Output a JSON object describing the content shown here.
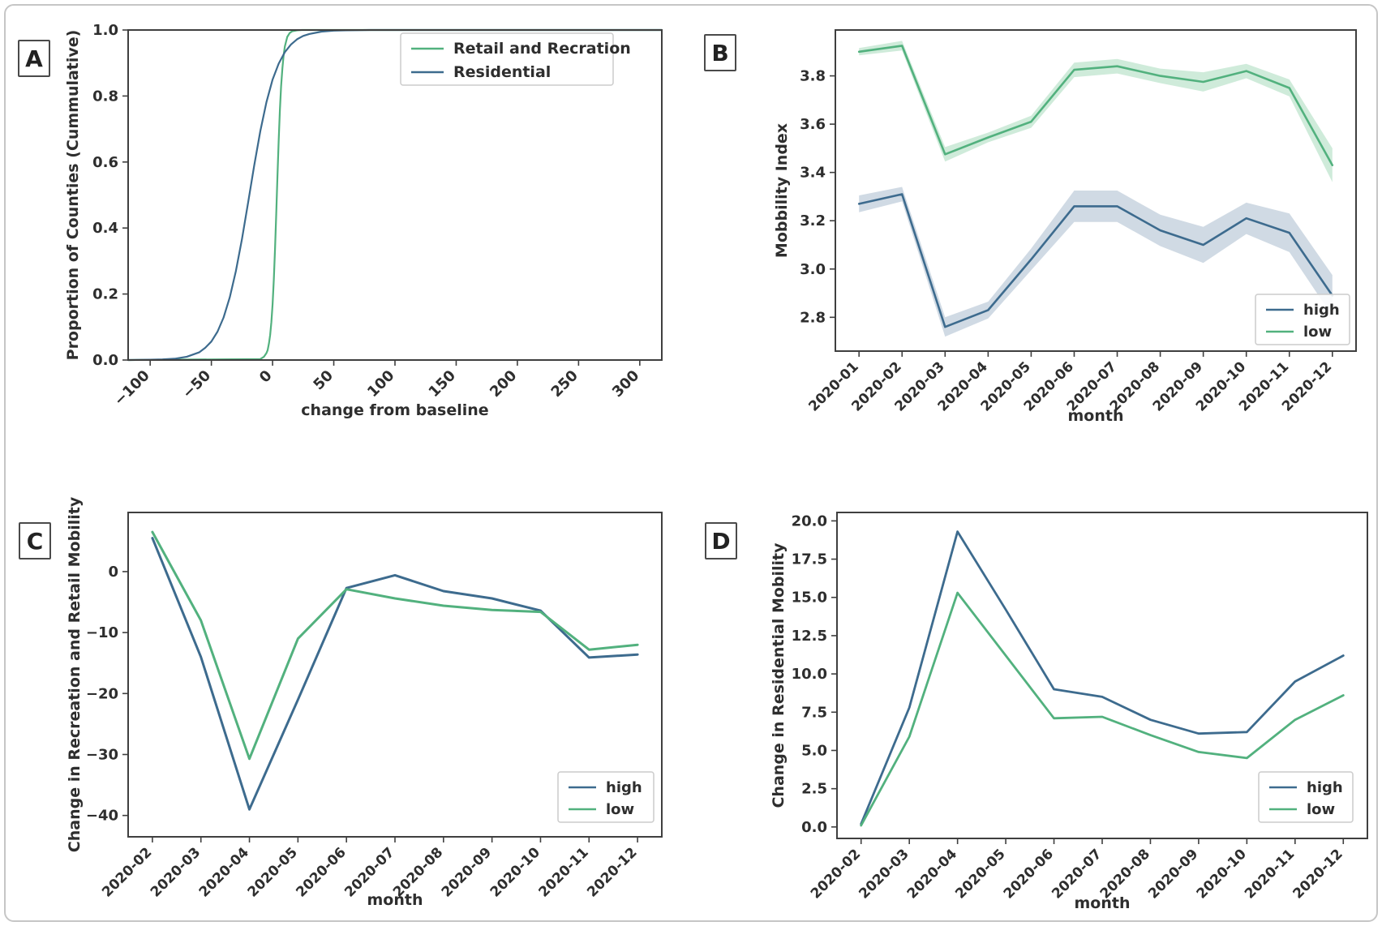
{
  "figure": {
    "panels": [
      {
        "letter": "A"
      },
      {
        "letter": "B"
      },
      {
        "letter": "C"
      },
      {
        "letter": "D"
      }
    ]
  },
  "colors": {
    "high": "#3d6b8e",
    "low": "#52b17e",
    "high_band": "rgba(110,140,170,0.32)",
    "low_band": "rgba(96,190,134,0.30)",
    "spine": "#3f3f3f",
    "text": "#2e2e2e",
    "legend_border": "#cccccc",
    "figure_border": "#c6c6c6"
  },
  "chart_data": [
    {
      "panel": "A",
      "type": "line",
      "xlabel": "change from baseline",
      "ylabel": "Proportion of Counties (Cummulative)",
      "xlim": [
        -118,
        318
      ],
      "ylim": [
        0,
        1.0
      ],
      "grid": false,
      "xticks": [
        {
          "v": -100,
          "label": "−100"
        },
        {
          "v": -50,
          "label": "−50"
        },
        {
          "v": 0,
          "label": "0"
        },
        {
          "v": 50,
          "label": "50"
        },
        {
          "v": 100,
          "label": "100"
        },
        {
          "v": 150,
          "label": "150"
        },
        {
          "v": 200,
          "label": "200"
        },
        {
          "v": 250,
          "label": "250"
        },
        {
          "v": 300,
          "label": "300"
        }
      ],
      "yticks": [
        {
          "v": 0.0,
          "label": "0.0"
        },
        {
          "v": 0.2,
          "label": "0.2"
        },
        {
          "v": 0.4,
          "label": "0.4"
        },
        {
          "v": 0.6,
          "label": "0.6"
        },
        {
          "v": 0.8,
          "label": "0.8"
        },
        {
          "v": 1.0,
          "label": "1.0"
        }
      ],
      "legend": {
        "position": "upper-right",
        "entries": [
          {
            "label": "Retail and Recration",
            "color_key": "low"
          },
          {
            "label": "Residential",
            "color_key": "high"
          }
        ]
      },
      "series": [
        {
          "name": "Retail and Recration",
          "color_key": "low",
          "x": [
            -118,
            -10,
            -7,
            -5,
            -4,
            -3,
            -2,
            -1,
            0,
            1,
            2,
            3,
            4,
            5,
            6,
            7,
            8,
            9,
            10,
            12,
            14,
            16,
            20,
            24,
            28,
            318
          ],
          "y": [
            0,
            0.003,
            0.01,
            0.021,
            0.03,
            0.05,
            0.076,
            0.115,
            0.169,
            0.243,
            0.336,
            0.443,
            0.557,
            0.664,
            0.757,
            0.83,
            0.884,
            0.923,
            0.95,
            0.979,
            0.991,
            0.996,
            0.999,
            1.0,
            1.0,
            1.0
          ]
        },
        {
          "name": "Residential",
          "color_key": "high",
          "x": [
            -118,
            -100,
            -90,
            -80,
            -70,
            -60,
            -55,
            -50,
            -45,
            -40,
            -35,
            -30,
            -25,
            -20,
            -15,
            -10,
            -5,
            0,
            5,
            10,
            15,
            20,
            25,
            30,
            40,
            50,
            60,
            80,
            318
          ],
          "y": [
            0,
            0.001,
            0.002,
            0.004,
            0.01,
            0.023,
            0.037,
            0.056,
            0.086,
            0.129,
            0.19,
            0.269,
            0.367,
            0.477,
            0.589,
            0.694,
            0.781,
            0.85,
            0.898,
            0.933,
            0.956,
            0.972,
            0.982,
            0.988,
            0.995,
            0.998,
            0.999,
            1.0,
            1.0
          ]
        }
      ]
    },
    {
      "panel": "B",
      "type": "line",
      "xlabel": "month",
      "ylabel": "Mobbility Index",
      "categories": [
        "2020-01",
        "2020-02",
        "2020-03",
        "2020-04",
        "2020-05",
        "2020-06",
        "2020-07",
        "2020-08",
        "2020-09",
        "2020-10",
        "2020-11",
        "2020-12"
      ],
      "xlim": [
        -0.55,
        11.55
      ],
      "ylim": [
        2.66,
        3.99
      ],
      "grid": false,
      "yticks": [
        {
          "v": 2.8,
          "label": "2.8"
        },
        {
          "v": 3.0,
          "label": "3.0"
        },
        {
          "v": 3.2,
          "label": "3.2"
        },
        {
          "v": 3.4,
          "label": "3.4"
        },
        {
          "v": 3.6,
          "label": "3.6"
        },
        {
          "v": 3.8,
          "label": "3.8"
        }
      ],
      "legend": {
        "position": "lower-right",
        "entries": [
          {
            "label": "high",
            "color_key": "high"
          },
          {
            "label": "low",
            "color_key": "low"
          }
        ]
      },
      "series": [
        {
          "name": "high",
          "color_key": "high",
          "values": [
            3.27,
            3.31,
            2.76,
            2.83,
            3.04,
            3.26,
            3.26,
            3.16,
            3.1,
            3.21,
            3.15,
            2.89
          ],
          "band_upper": [
            3.305,
            3.34,
            2.8,
            2.865,
            3.085,
            3.325,
            3.325,
            3.225,
            3.175,
            3.275,
            3.23,
            2.975
          ],
          "band_lower": [
            3.235,
            3.28,
            2.72,
            2.795,
            2.995,
            3.195,
            3.195,
            3.095,
            3.025,
            3.145,
            3.07,
            2.805
          ]
        },
        {
          "name": "low",
          "color_key": "low",
          "values": [
            3.9,
            3.925,
            3.475,
            3.545,
            3.61,
            3.825,
            3.84,
            3.8,
            3.775,
            3.82,
            3.75,
            3.43
          ],
          "band_upper": [
            3.915,
            3.945,
            3.505,
            3.565,
            3.635,
            3.855,
            3.87,
            3.83,
            3.815,
            3.85,
            3.785,
            3.5
          ],
          "band_lower": [
            3.885,
            3.905,
            3.445,
            3.525,
            3.585,
            3.795,
            3.81,
            3.77,
            3.735,
            3.79,
            3.715,
            3.36
          ]
        }
      ]
    },
    {
      "panel": "C",
      "type": "line",
      "xlabel": "month",
      "ylabel": "Change in Recreation and Retail Mobility",
      "categories": [
        "2020-02",
        "2020-03",
        "2020-04",
        "2020-05",
        "2020-06",
        "2020-07",
        "2020-08",
        "2020-09",
        "2020-10",
        "2020-11",
        "2020-12"
      ],
      "xlim": [
        -0.5,
        10.5
      ],
      "ylim": [
        -43.5,
        9.7
      ],
      "grid": false,
      "yticks": [
        {
          "v": 0,
          "label": "0"
        },
        {
          "v": -10,
          "label": "−10"
        },
        {
          "v": -20,
          "label": "−20"
        },
        {
          "v": -30,
          "label": "−30"
        },
        {
          "v": -40,
          "label": "−40"
        }
      ],
      "legend": {
        "position": "lower-right",
        "entries": [
          {
            "label": "high",
            "color_key": "high"
          },
          {
            "label": "low",
            "color_key": "low"
          }
        ]
      },
      "series": [
        {
          "name": "high",
          "color_key": "high",
          "values": [
            5.5,
            -14,
            -39,
            -21,
            -2.7,
            -0.6,
            -3.2,
            -4.4,
            -6.4,
            -14.1,
            -13.6
          ]
        },
        {
          "name": "low",
          "color_key": "low",
          "values": [
            6.5,
            -8,
            -30.7,
            -11,
            -2.9,
            -4.4,
            -5.6,
            -6.3,
            -6.6,
            -12.8,
            -12.0
          ]
        }
      ]
    },
    {
      "panel": "D",
      "type": "line",
      "xlabel": "month",
      "ylabel": "Change in Residential Mobility",
      "categories": [
        "2020-02",
        "2020-03",
        "2020-04",
        "2020-05",
        "2020-06",
        "2020-07",
        "2020-08",
        "2020-09",
        "2020-10",
        "2020-11",
        "2020-12"
      ],
      "xlim": [
        -0.5,
        10.5
      ],
      "ylim": [
        -0.75,
        20.55
      ],
      "grid": false,
      "yticks": [
        {
          "v": 0.0,
          "label": "0.0"
        },
        {
          "v": 2.5,
          "label": "2.5"
        },
        {
          "v": 5.0,
          "label": "5.0"
        },
        {
          "v": 7.5,
          "label": "7.5"
        },
        {
          "v": 10.0,
          "label": "10.0"
        },
        {
          "v": 12.5,
          "label": "12.5"
        },
        {
          "v": 15.0,
          "label": "15.0"
        },
        {
          "v": 17.5,
          "label": "17.5"
        },
        {
          "v": 20.0,
          "label": "20.0"
        }
      ],
      "legend": {
        "position": "lower-right",
        "entries": [
          {
            "label": "high",
            "color_key": "high"
          },
          {
            "label": "low",
            "color_key": "low"
          }
        ]
      },
      "series": [
        {
          "name": "high",
          "color_key": "high",
          "values": [
            0.2,
            7.8,
            19.3,
            14.2,
            9.0,
            8.5,
            7.0,
            6.1,
            6.2,
            9.5,
            11.2
          ]
        },
        {
          "name": "low",
          "color_key": "low",
          "values": [
            0.1,
            5.9,
            15.3,
            11.2,
            7.1,
            7.2,
            6.0,
            4.9,
            4.5,
            7.0,
            8.6
          ]
        }
      ]
    }
  ]
}
